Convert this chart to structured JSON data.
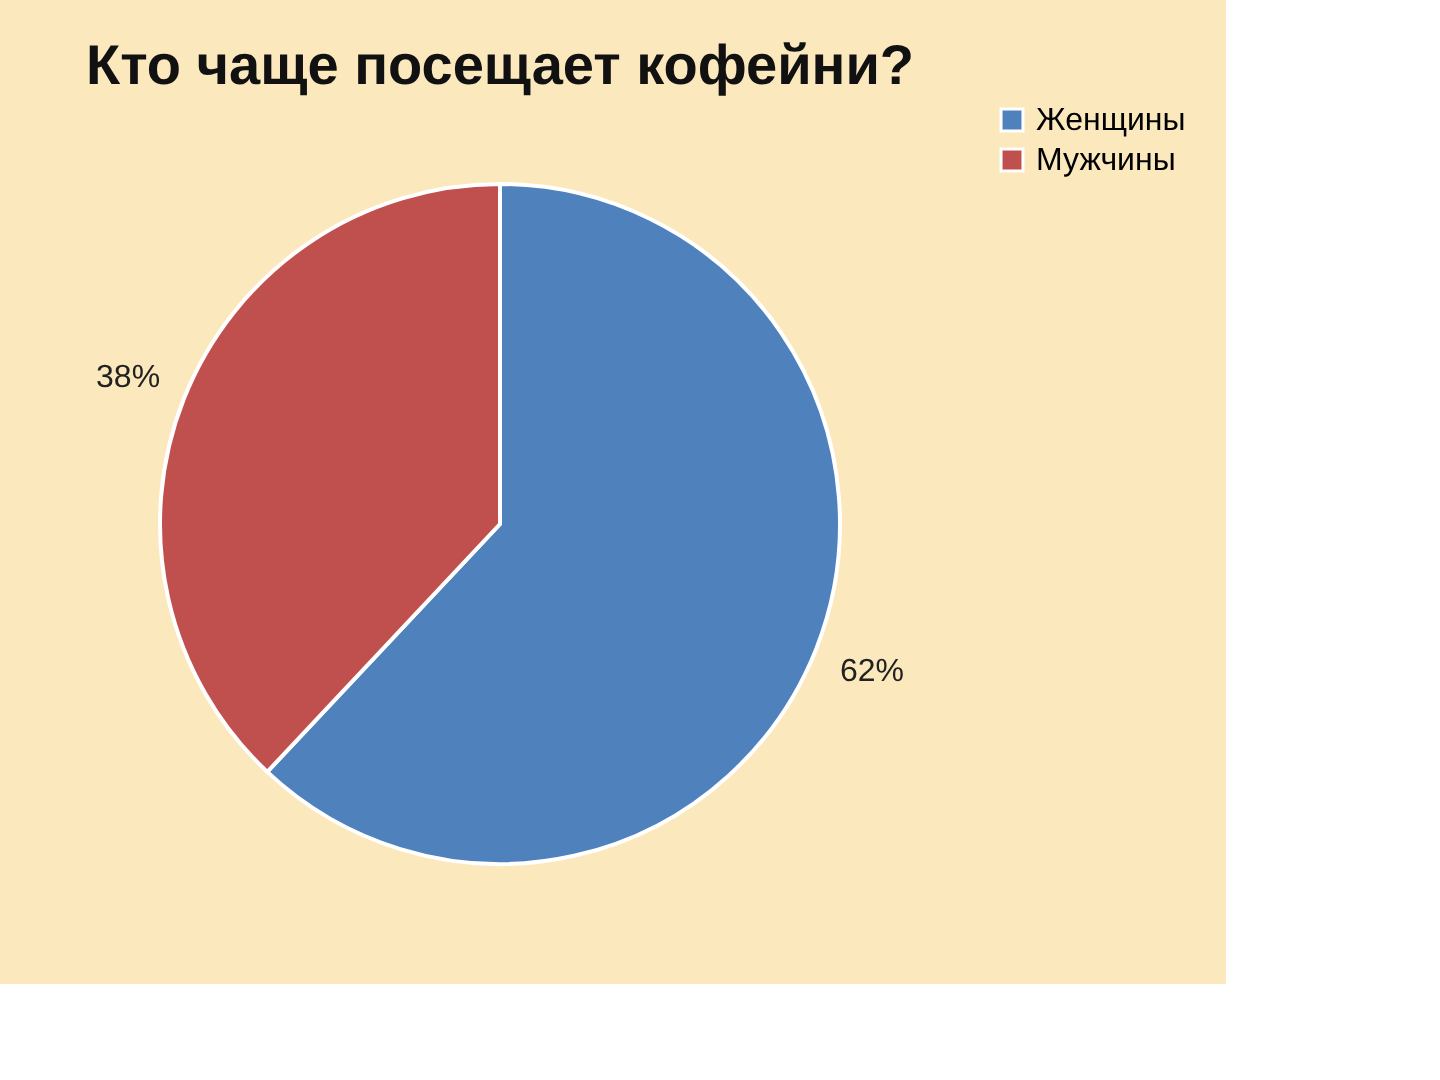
{
  "chart_data": {
    "type": "pie",
    "title": "Кто чаще посещает кофейни?",
    "categories": [
      "Женщины",
      "Мужчины"
    ],
    "values": [
      62,
      38
    ],
    "colors": [
      "#4f81bd",
      "#c0504d"
    ],
    "value_labels": [
      "62%",
      "38%"
    ],
    "legend": "right"
  }
}
